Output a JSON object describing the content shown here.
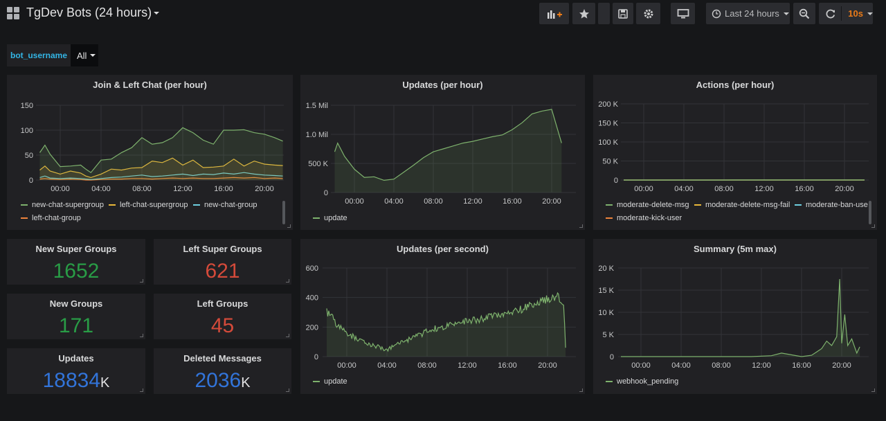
{
  "header": {
    "title": "TgDev Bots (24 hours)",
    "time_range": "Last 24 hours",
    "refresh": "10s"
  },
  "variable": {
    "label": "bot_username",
    "value": "All"
  },
  "colors": {
    "green": "#7eb26d",
    "yellow": "#eab839",
    "cyan": "#6ed0e0",
    "orange": "#ef843c",
    "stat_green": "#299c46",
    "stat_red": "#d44a3a",
    "stat_blue": "#3274d9"
  },
  "panels": {
    "join_left": {
      "title": "Join & Left Chat (per hour)",
      "legend": [
        "new-chat-supergroup",
        "left-chat-supergroup",
        "new-chat-group",
        "left-chat-group"
      ],
      "chart_data": {
        "type": "line",
        "x_ticks": [
          "00:00",
          "04:00",
          "08:00",
          "12:00",
          "16:00",
          "20:00"
        ],
        "y_ticks": [
          "0",
          "50",
          "100",
          "150"
        ],
        "ylim": [
          0,
          150
        ],
        "x_hours": [
          -2,
          -1.5,
          -1,
          0,
          1,
          2,
          2.5,
          3,
          4,
          5,
          6,
          7,
          8,
          9,
          10,
          11,
          12,
          13,
          14,
          15,
          16,
          17,
          18,
          19,
          20,
          21,
          21.8
        ],
        "series": [
          {
            "name": "new-chat-supergroup",
            "color": "#7eb26d",
            "fill": true,
            "values": [
              55,
              70,
              52,
              27,
              28,
              30,
              22,
              15,
              40,
              42,
              55,
              65,
              85,
              72,
              75,
              85,
              105,
              95,
              80,
              72,
              100,
              100,
              101,
              95,
              92,
              85,
              78
            ]
          },
          {
            "name": "left-chat-supergroup",
            "color": "#eab839",
            "fill": true,
            "values": [
              20,
              28,
              18,
              12,
              18,
              14,
              8,
              5,
              12,
              22,
              20,
              24,
              25,
              38,
              35,
              44,
              30,
              40,
              25,
              26,
              28,
              42,
              28,
              38,
              32,
              30,
              29
            ]
          },
          {
            "name": "new-chat-group",
            "color": "#6ed0e0",
            "fill": false,
            "values": [
              5,
              8,
              4,
              3,
              4,
              3,
              2,
              1,
              3,
              5,
              6,
              8,
              10,
              7,
              8,
              10,
              12,
              9,
              12,
              11,
              14,
              12,
              15,
              12,
              10,
              9,
              8
            ]
          },
          {
            "name": "left-chat-group",
            "color": "#ef843c",
            "fill": false,
            "values": [
              2,
              3,
              2,
              1,
              2,
              1,
              0,
              0,
              1,
              2,
              2,
              3,
              3,
              2,
              3,
              4,
              3,
              4,
              3,
              3,
              4,
              5,
              4,
              5,
              3,
              4,
              3
            ]
          }
        ]
      }
    },
    "updates_hour": {
      "title": "Updates (per hour)",
      "legend": [
        "update"
      ],
      "chart_data": {
        "type": "area",
        "x_ticks": [
          "00:00",
          "04:00",
          "08:00",
          "12:00",
          "16:00",
          "20:00"
        ],
        "y_ticks": [
          "0",
          "500 K",
          "1.0 Mil",
          "1.5 Mil"
        ],
        "ylim": [
          0,
          1500000
        ],
        "x_hours": [
          -2,
          -1.7,
          -1,
          0,
          1,
          2,
          3,
          4,
          5,
          6,
          7,
          8,
          9,
          10,
          11,
          12,
          13,
          14,
          15,
          16,
          17,
          18,
          19,
          20,
          21
        ],
        "series": [
          {
            "name": "update",
            "color": "#7eb26d",
            "values": [
              700000,
              850000,
              620000,
              400000,
              260000,
              270000,
              210000,
              230000,
              350000,
              470000,
              600000,
              700000,
              750000,
              800000,
              850000,
              880000,
              920000,
              960000,
              990000,
              1080000,
              1200000,
              1350000,
              1400000,
              1430000,
              850000
            ]
          }
        ]
      }
    },
    "actions": {
      "title": "Actions (per hour)",
      "legend": [
        "moderate-delete-msg",
        "moderate-delete-msg-fail",
        "moderate-ban-user",
        "moderate-kick-user"
      ],
      "chart_data": {
        "type": "line",
        "x_ticks": [
          "00:00",
          "04:00",
          "08:00",
          "12:00",
          "16:00",
          "20:00"
        ],
        "y_ticks": [
          "0",
          "50 K",
          "100 K",
          "150 K",
          "200 K"
        ],
        "ylim": [
          0,
          200000
        ],
        "x_hours": [
          -2,
          -1.6,
          -1,
          0,
          1,
          2,
          3,
          4,
          5,
          6,
          7,
          8,
          9,
          10,
          11,
          12,
          13,
          14,
          15,
          16,
          17,
          18,
          19,
          20,
          21,
          22
        ],
        "series": [
          {
            "name": "moderate-delete-msg",
            "color": "#7eb26d",
            "fill": true,
            "values": [
              75,
              88,
              70,
              55,
              45,
              38,
              35,
              33,
              45,
              60,
              80,
              88,
              100,
              110,
              118,
              125,
              112,
              115,
              120,
              118,
              140,
              145,
              162,
              155,
              158,
              102
            ]
          },
          {
            "name": "moderate-delete-msg-fail",
            "color": "#eab839",
            "fill": false,
            "values": [
              14,
              13,
              12,
              10,
              8,
              6,
              4,
              5,
              8,
              12,
              12,
              12,
              12,
              12,
              12,
              13,
              12,
              12,
              12,
              12,
              14,
              25,
              20,
              38,
              38,
              15
            ]
          },
          {
            "name": "moderate-ban-user",
            "color": "#6ed0e0",
            "fill": false,
            "values": [
              2,
              2,
              2,
              1,
              1,
              1,
              1,
              1,
              1,
              1,
              1,
              1,
              1,
              1,
              1,
              1,
              1,
              1,
              1,
              1,
              1,
              1,
              1,
              1,
              1,
              1
            ]
          },
          {
            "name": "moderate-kick-user",
            "color": "#ef843c",
            "fill": false,
            "values": [
              0,
              0,
              0,
              0,
              0,
              0,
              0,
              0,
              0,
              0,
              0,
              0,
              0,
              0,
              0,
              0,
              0,
              0,
              0,
              0,
              0,
              0,
              0,
              0,
              0,
              0
            ]
          }
        ]
      }
    },
    "updates_second": {
      "title": "Updates (per second)",
      "legend": [
        "update"
      ],
      "chart_data": {
        "type": "area",
        "x_ticks": [
          "00:00",
          "04:00",
          "08:00",
          "12:00",
          "16:00",
          "20:00"
        ],
        "y_ticks": [
          "0",
          "200",
          "400",
          "600"
        ],
        "ylim": [
          0,
          600
        ],
        "x_hours": [
          -2,
          -1.5,
          -1,
          0,
          1,
          2,
          3,
          4,
          5,
          6,
          7,
          8,
          9,
          10,
          11,
          12,
          13,
          14,
          15,
          16,
          17,
          18,
          19,
          20,
          21,
          21.6,
          21.8
        ],
        "series": [
          {
            "name": "update",
            "color": "#7eb26d",
            "values": [
              300,
              270,
              220,
              160,
              120,
              90,
              70,
              50,
              80,
              110,
              140,
              170,
              195,
              210,
              225,
              240,
              250,
              265,
              275,
              290,
              310,
              340,
              365,
              390,
              410,
              360,
              60
            ]
          }
        ]
      }
    },
    "summary": {
      "title": "Summary (5m max)",
      "legend": [
        "webhook_pending"
      ],
      "chart_data": {
        "type": "line",
        "x_ticks": [
          "00:00",
          "04:00",
          "08:00",
          "12:00",
          "16:00",
          "20:00"
        ],
        "y_ticks": [
          "0",
          "5 K",
          "10 K",
          "15 K",
          "20 K"
        ],
        "ylim": [
          0,
          20000
        ],
        "x_hours": [
          -2,
          0,
          4,
          8,
          11,
          13,
          14,
          16,
          17,
          18,
          18.5,
          19,
          19.5,
          19.8,
          20,
          20.3,
          20.6,
          21,
          21.5,
          21.8
        ],
        "series": [
          {
            "name": "webhook_pending",
            "color": "#7eb26d",
            "values": [
              0,
              0,
              0,
              0,
              0,
              200,
              800,
              0,
              300,
              1800,
              3500,
              2500,
              4500,
              17500,
              3000,
              9500,
              2500,
              4000,
              800,
              2200
            ]
          }
        ]
      }
    },
    "stats": [
      {
        "title": "New Super Groups",
        "value": "1652",
        "unit": "",
        "color": "#299c46"
      },
      {
        "title": "Left Super Groups",
        "value": "621",
        "unit": "",
        "color": "#d44a3a"
      },
      {
        "title": "New Groups",
        "value": "171",
        "unit": "",
        "color": "#299c46"
      },
      {
        "title": "Left Groups",
        "value": "45",
        "unit": "",
        "color": "#d44a3a"
      },
      {
        "title": "Updates",
        "value": "18834",
        "unit": "K",
        "color": "#3274d9"
      },
      {
        "title": "Deleted Messages",
        "value": "2036",
        "unit": "K",
        "color": "#3274d9"
      }
    ]
  }
}
